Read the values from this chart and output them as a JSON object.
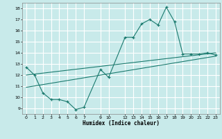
{
  "title": "",
  "xlabel": "Humidex (Indice chaleur)",
  "ylabel": "",
  "bg_color": "#c8eaea",
  "grid_color": "#ffffff",
  "line_color": "#1a7a6e",
  "xlim": [
    -0.5,
    23.5
  ],
  "ylim": [
    8.5,
    18.5
  ],
  "yticks": [
    9,
    10,
    11,
    12,
    13,
    14,
    15,
    16,
    17,
    18
  ],
  "xticks": [
    0,
    1,
    2,
    3,
    4,
    5,
    6,
    7,
    9,
    10,
    12,
    13,
    14,
    15,
    16,
    17,
    18,
    19,
    20,
    21,
    22,
    23
  ],
  "series1_x": [
    0,
    1,
    2,
    3,
    4,
    5,
    6,
    7,
    9,
    10,
    12,
    13,
    14,
    15,
    16,
    17,
    18,
    19,
    20,
    21,
    22,
    23
  ],
  "series1_y": [
    12.7,
    12.0,
    10.4,
    9.8,
    9.8,
    9.6,
    8.9,
    9.1,
    12.5,
    11.8,
    15.4,
    15.4,
    16.6,
    17.0,
    16.5,
    18.1,
    16.8,
    13.9,
    13.9,
    13.9,
    14.0,
    13.8
  ],
  "trend1_x": [
    0,
    23
  ],
  "trend1_y": [
    10.9,
    13.7
  ],
  "trend2_x": [
    0,
    23
  ],
  "trend2_y": [
    12.0,
    14.0
  ]
}
